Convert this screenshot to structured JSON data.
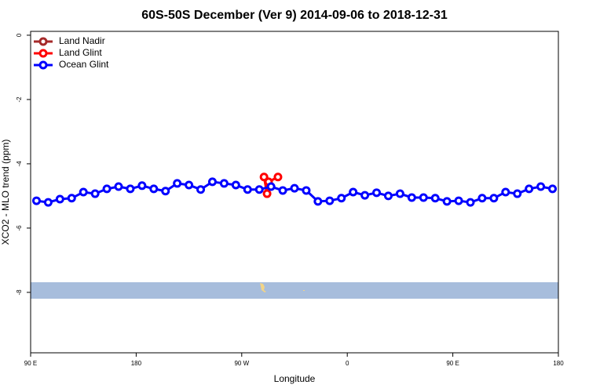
{
  "chart_data": {
    "type": "line",
    "title": "60S-50S December (Ver 9)   2014-09-06 to 2018-12-31",
    "xlabel": "Longitude",
    "ylabel": "XCO2 - MLO trend (ppm)",
    "xlim": [
      90,
      540
    ],
    "ylim": [
      -9.88,
      0.12
    ],
    "xticks": [
      {
        "value": 90,
        "label": "90 E"
      },
      180,
      {
        "value": 270,
        "label": "90 W"
      },
      {
        "value": 360,
        "label": "0"
      },
      {
        "value": 450,
        "label": "90 E"
      },
      {
        "value": 540,
        "label": "180"
      }
    ],
    "yticks": [
      0,
      -2,
      -4,
      -6,
      -8
    ],
    "legend": "top-left",
    "series": [
      {
        "name": "Land Nadir",
        "color": "#a52a2a",
        "x": [],
        "values": []
      },
      {
        "name": "Land Glint",
        "color": "#ff0000",
        "x": [
          289,
          291.6,
          292.9,
          300.9
        ],
        "values": [
          -4.41,
          -4.93,
          -4.56,
          -4.41
        ]
      },
      {
        "name": "Ocean Glint",
        "color": "#0000ff",
        "x": [
          95,
          105,
          115,
          125,
          135,
          145,
          155,
          165,
          175,
          185,
          195,
          205,
          215,
          225,
          235,
          245,
          255,
          265,
          275,
          285,
          295,
          305,
          315,
          325,
          335,
          345,
          355,
          365,
          375,
          385,
          395,
          405,
          415,
          425,
          435,
          445,
          455,
          465,
          475,
          485,
          495,
          505,
          515,
          525,
          535
        ],
        "values": [
          -5.15,
          -5.2,
          -5.1,
          -5.07,
          -4.88,
          -4.93,
          -4.78,
          -4.71,
          -4.78,
          -4.68,
          -4.78,
          -4.85,
          -4.61,
          -4.66,
          -4.8,
          -4.56,
          -4.61,
          -4.66,
          -4.8,
          -4.8,
          -4.71,
          -4.83,
          -4.76,
          -4.83,
          -5.17,
          -5.15,
          -5.07,
          -4.88,
          -4.98,
          -4.9,
          -5.0,
          -4.93,
          -5.05,
          -5.05,
          -5.07,
          -5.17,
          -5.15,
          -5.2,
          -5.07,
          -5.07,
          -4.88,
          -4.93,
          -4.78,
          -4.71,
          -4.78
        ]
      }
    ]
  }
}
